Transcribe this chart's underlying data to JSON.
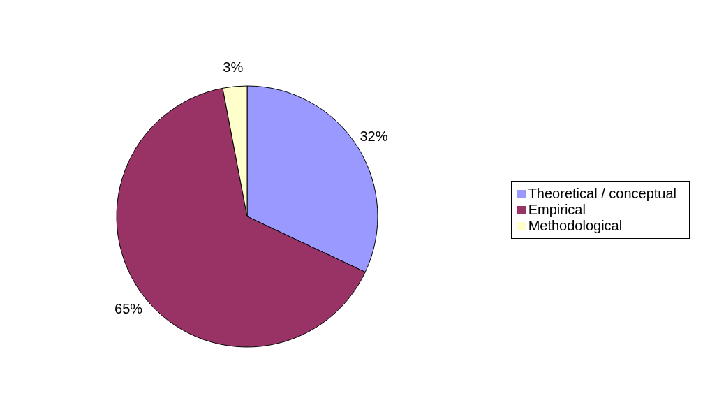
{
  "chart_data": {
    "type": "pie",
    "categories": [
      "Theoretical / conceptual",
      "Empirical",
      "Methodological"
    ],
    "values": [
      32,
      65,
      3
    ],
    "colors": [
      "#9999ff",
      "#993366",
      "#ffffcc"
    ],
    "value_labels": [
      "32%",
      "65%",
      "3%"
    ],
    "legend": "right"
  }
}
